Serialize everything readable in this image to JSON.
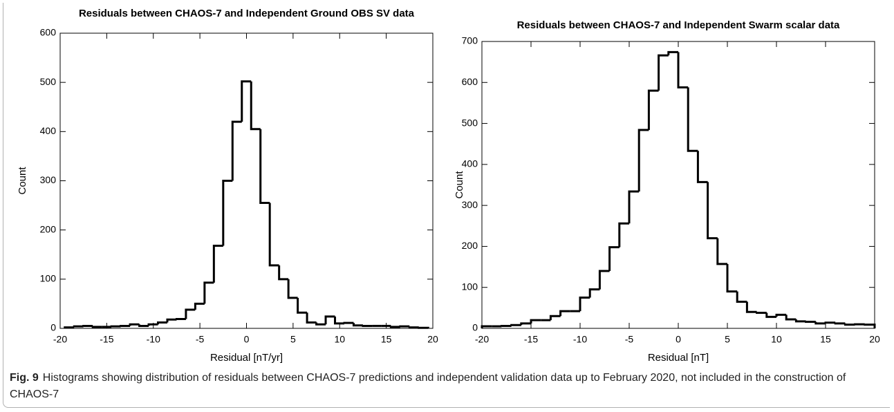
{
  "chart_data": [
    {
      "type": "histogram",
      "title": "Residuals between CHAOS-7 and Independent Ground OBS SV data",
      "xlabel": "Residual [nT/yr]",
      "ylabel": "Count",
      "color": "#000000",
      "bins": [
        -19.5,
        -18.5,
        -17.5,
        -16.5,
        -15.5,
        -14.5,
        -13.5,
        -12.5,
        -11.5,
        -10.5,
        -9.5,
        -8.5,
        -7.5,
        -6.5,
        -5.5,
        -4.5,
        -3.5,
        -2.5,
        -1.5,
        -0.5,
        0.5,
        1.5,
        2.5,
        3.5,
        4.5,
        5.5,
        6.5,
        7.5,
        8.5,
        9.5,
        10.5,
        11.5,
        12.5,
        13.5,
        14.5,
        15.5,
        16.5,
        17.5,
        18.5,
        19.5
      ],
      "values": [
        2,
        4,
        5,
        3,
        3,
        4,
        5,
        8,
        5,
        8,
        12,
        18,
        19,
        38,
        50,
        93,
        168,
        300,
        420,
        502,
        405,
        255,
        128,
        100,
        62,
        32,
        12,
        8,
        24,
        10,
        11,
        6,
        5,
        5,
        5,
        3,
        4,
        2,
        1
      ],
      "xlim": [
        -20,
        20
      ],
      "xticks": [
        -20,
        -15,
        -10,
        -5,
        0,
        5,
        10,
        15,
        20
      ],
      "ylim": [
        0,
        600
      ],
      "yticks": [
        0,
        100,
        200,
        300,
        400,
        500,
        600
      ]
    },
    {
      "type": "histogram",
      "title": "Residuals between CHAOS-7 and Independent Swarm scalar data",
      "xlabel": "Residual [nT]",
      "ylabel": "Count",
      "color": "#000000",
      "bins": [
        -20,
        -19,
        -18,
        -17,
        -16,
        -15,
        -14,
        -13,
        -12,
        -11,
        -10,
        -9,
        -8,
        -7,
        -6,
        -5,
        -4,
        -3,
        -2,
        -1,
        0,
        1,
        2,
        3,
        4,
        5,
        6,
        7,
        8,
        9,
        10,
        11,
        12,
        13,
        14,
        15,
        16,
        17,
        18,
        19,
        20
      ],
      "values": [
        5,
        5,
        6,
        8,
        12,
        20,
        20,
        30,
        42,
        42,
        75,
        95,
        140,
        198,
        256,
        334,
        484,
        580,
        666,
        674,
        588,
        433,
        357,
        220,
        157,
        90,
        65,
        40,
        38,
        28,
        33,
        22,
        17,
        16,
        12,
        14,
        12,
        9,
        10,
        9
      ],
      "xlim": [
        -20,
        20
      ],
      "xticks": [
        -20,
        -15,
        -10,
        -5,
        0,
        5,
        10,
        15,
        20
      ],
      "ylim": [
        0,
        700
      ],
      "yticks": [
        0,
        100,
        200,
        300,
        400,
        500,
        600,
        700
      ]
    }
  ],
  "caption": {
    "label": "Fig. 9",
    "text": "Histograms showing distribution of residuals between CHAOS-7 predictions and independent validation data up to February 2020, not included in the construction of CHAOS-7"
  }
}
